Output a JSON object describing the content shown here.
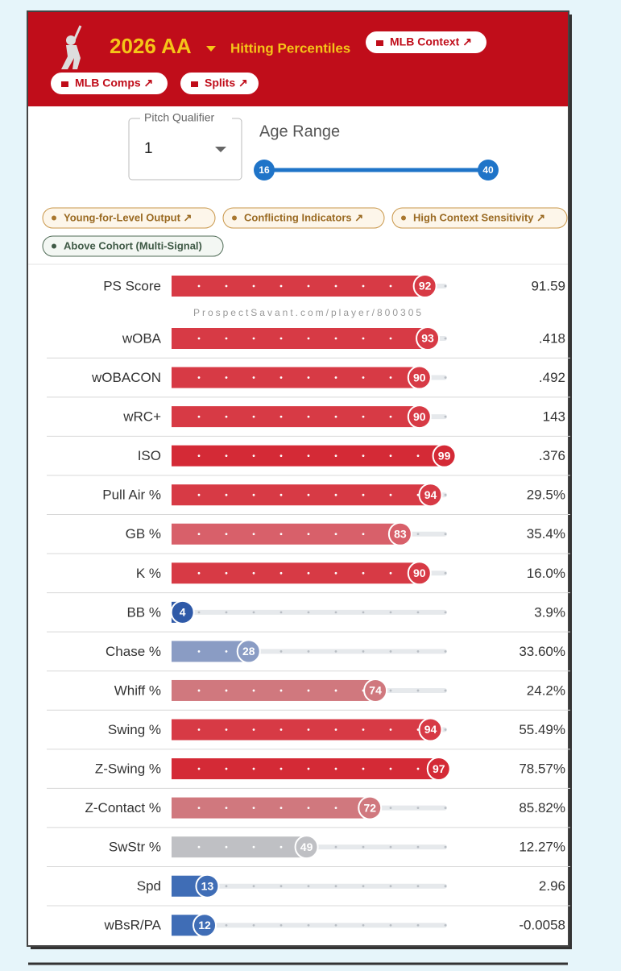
{
  "header": {
    "title": "2026 AA",
    "subtitle": "Hitting Percentiles",
    "links": [
      "MLB Context ↗",
      "MLB Comps ↗",
      "Splits ↗"
    ]
  },
  "controls": {
    "pitch_qualifier": {
      "label": "Pitch Qualifier",
      "value": "1"
    },
    "age_range": {
      "label": "Age Range",
      "min": "16",
      "max": "40"
    }
  },
  "tags": [
    "Young-for-Level Output ↗",
    "Conflicting Indicators ↗",
    "High Context Sensitivity ↗",
    "Above Cohort (Multi-Signal)"
  ],
  "watermark": "ProspectSavant.com/player/800305",
  "chart_data": {
    "type": "bar",
    "orientation": "horizontal",
    "categories": [
      "PS Score",
      "wOBA",
      "wOBACON",
      "wRC+",
      "ISO",
      "Pull Air %",
      "GB %",
      "K %",
      "BB %",
      "Chase %",
      "Whiff %",
      "Swing %",
      "Z-Swing %",
      "Z-Contact %",
      "SwStr %",
      "Spd",
      "wBsR/PA"
    ],
    "values": [
      92,
      93,
      90,
      90,
      99,
      94,
      83,
      90,
      4,
      28,
      74,
      94,
      97,
      72,
      49,
      13,
      12
    ],
    "colors": [
      "#d73a45",
      "#d73a45",
      "#d73a45",
      "#d73a45",
      "#d42a36",
      "#d73a45",
      "#d8606a",
      "#d73a45",
      "#2f5aa8",
      "#8a9cc4",
      "#d0787e",
      "#d73a45",
      "#d42a36",
      "#d0787e",
      "#bfc0c4",
      "#3f6db6",
      "#3f6db6"
    ],
    "xlim": [
      0,
      100
    ],
    "stats": [
      "91.59",
      ".418",
      ".492",
      "143",
      ".376",
      "29.5%",
      "35.4%",
      "16.0%",
      "3.9%",
      "33.60%",
      "24.2%",
      "55.49%",
      "78.57%",
      "85.82%",
      "12.27%",
      "2.96",
      "-0.0058"
    ]
  }
}
